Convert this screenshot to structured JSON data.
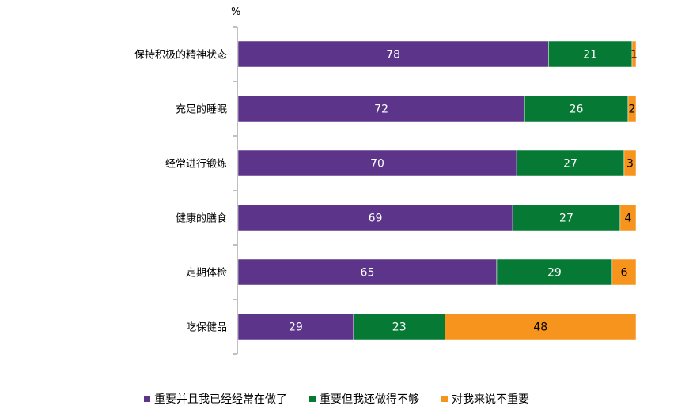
{
  "chart_data": {
    "type": "bar",
    "orientation": "horizontal",
    "stacked": true,
    "unit_label": "%",
    "categories": [
      "保持积极的精神状态",
      "充足的睡眠",
      "经常进行锻炼",
      "健康的膳食",
      "定期体检",
      "吃保健品"
    ],
    "series": [
      {
        "name": "重要并且我已经经常在做了",
        "color": "#5c358a",
        "label_color": "#ffffff",
        "values": [
          78,
          72,
          70,
          69,
          65,
          29
        ]
      },
      {
        "name": "重要但我还做得不够",
        "color": "#067a34",
        "label_color": "#ffffff",
        "values": [
          21,
          26,
          27,
          27,
          29,
          23
        ]
      },
      {
        "name": "对我来说不重要",
        "color": "#f7941d",
        "label_color": "#000000",
        "values": [
          1,
          2,
          3,
          4,
          6,
          48
        ]
      }
    ],
    "xlim": [
      0,
      100
    ],
    "grid": false,
    "legend_position": "bottom"
  }
}
